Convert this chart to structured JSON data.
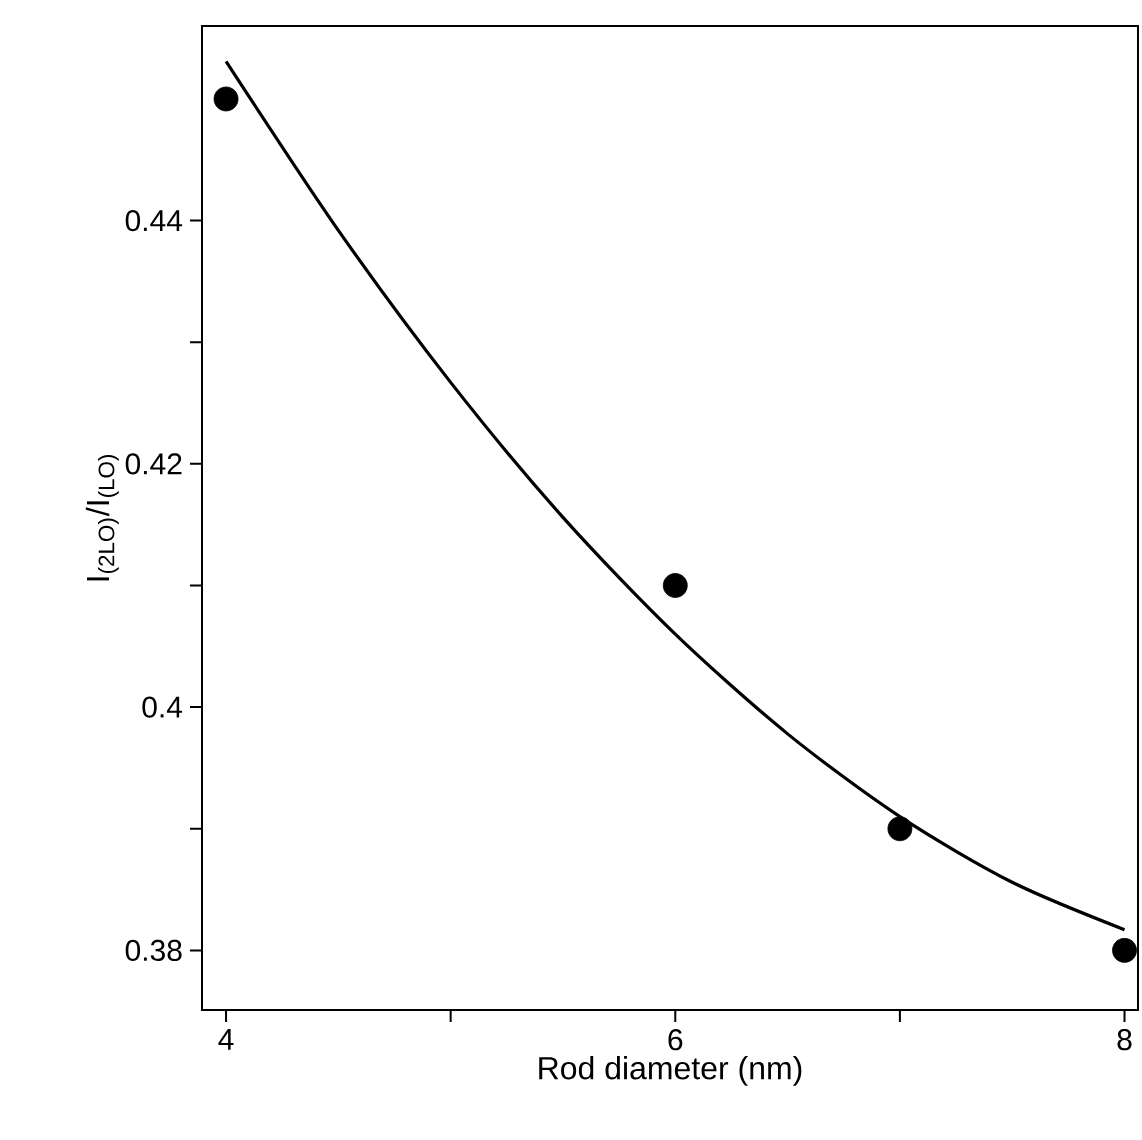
{
  "chart_data": {
    "type": "scatter",
    "xlabel": "Rod diameter (nm)",
    "ylabel": "I$_{(2LO)}$/I$_{(LO)}$",
    "xlim": [
      3.893,
      8.06
    ],
    "ylim": [
      0.3751,
      0.456
    ],
    "xticks": [
      4,
      {
        "value": 5,
        "label": null
      },
      6,
      {
        "value": 7,
        "label": null
      },
      8
    ],
    "yticks": [
      0.38,
      {
        "value": 0.39,
        "label": null
      },
      0.4,
      {
        "value": 0.41,
        "label": null
      },
      0.42,
      {
        "value": 0.43,
        "label": null
      },
      0.44
    ],
    "grid": false,
    "series": [
      {
        "color": "#000000",
        "marker": "circle",
        "x": [
          4,
          6,
          7,
          8
        ],
        "values": [
          0.45,
          0.41,
          0.39,
          0.38
        ]
      },
      {
        "type": "line",
        "color": "#000000",
        "marker": "none",
        "line_style": "solid",
        "x": [
          4,
          4.5,
          5,
          5.5,
          6,
          6.5,
          7,
          7.5,
          8
        ],
        "values": [
          0.4531,
          0.4392,
          0.4267,
          0.4156,
          0.406,
          0.3978,
          0.391,
          0.3856,
          0.3817
        ]
      }
    ]
  }
}
